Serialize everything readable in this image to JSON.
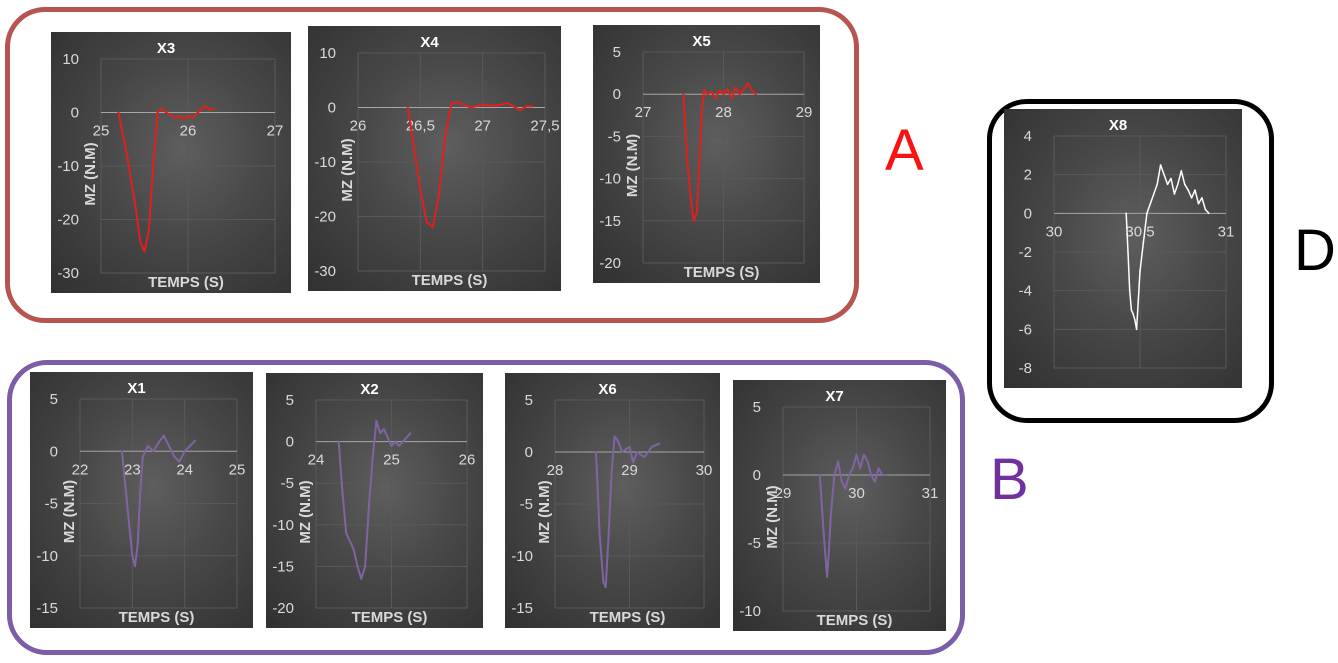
{
  "groups": [
    {
      "id": "A",
      "label": "A",
      "color": "#b85450",
      "charts": [
        "X3",
        "X4",
        "X5"
      ]
    },
    {
      "id": "B",
      "label": "B",
      "color": "#7b5ea7",
      "charts": [
        "X1",
        "X2",
        "X6",
        "X7"
      ]
    },
    {
      "id": "D",
      "label": "D",
      "color": "#000000",
      "charts": [
        "X8"
      ]
    }
  ],
  "chart_data": [
    {
      "id": "X3",
      "type": "line",
      "title": "X3",
      "xlabel": "TEMPS (S)",
      "ylabel": "MZ (N.M)",
      "color": "#e0201b",
      "xlim": [
        25,
        27
      ],
      "ylim": [
        -30,
        10
      ],
      "xticks": [
        "25",
        "26",
        "27"
      ],
      "yticks": [
        "10",
        "0",
        "-10",
        "-20",
        "-30"
      ],
      "grid": true,
      "x": [
        25.2,
        25.3,
        25.4,
        25.45,
        25.5,
        25.55,
        25.6,
        25.65,
        25.7,
        25.75,
        25.8,
        25.85,
        25.9,
        25.95,
        26.0,
        26.05,
        26.1,
        26.15,
        26.2,
        26.25,
        26.3
      ],
      "y": [
        0,
        -8,
        -18,
        -24,
        -26,
        -22,
        -10,
        0,
        0.8,
        0,
        -0.5,
        -1,
        -0.8,
        -1.2,
        -0.6,
        -1,
        -0.2,
        0.6,
        1.2,
        0.5,
        0.8
      ]
    },
    {
      "id": "X4",
      "type": "line",
      "title": "X4",
      "xlabel": "TEMPS (S)",
      "ylabel": "MZ (N.M)",
      "color": "#e0201b",
      "xlim": [
        26,
        27.5
      ],
      "ylim": [
        -30,
        10
      ],
      "xticks": [
        "26",
        "26,5",
        "27",
        "27,5"
      ],
      "yticks": [
        "10",
        "0",
        "-10",
        "-20",
        "-30"
      ],
      "grid": true,
      "x": [
        26.4,
        26.5,
        26.55,
        26.6,
        26.65,
        26.7,
        26.75,
        26.8,
        26.9,
        27.0,
        27.1,
        27.2,
        27.3,
        27.35,
        27.4
      ],
      "y": [
        0,
        -15,
        -21,
        -22,
        -16,
        -5,
        0.8,
        1,
        0,
        0.5,
        0.3,
        0.8,
        -0.5,
        0.2,
        0.2
      ]
    },
    {
      "id": "X5",
      "type": "line",
      "title": "X5",
      "xlabel": "TEMPS (S)",
      "ylabel": "MZ (N.M)",
      "color": "#e0201b",
      "xlim": [
        27,
        29
      ],
      "ylim": [
        -20,
        5
      ],
      "xticks": [
        "27",
        "28",
        "29"
      ],
      "yticks": [
        "5",
        "0",
        "-5",
        "-10",
        "-15",
        "-20"
      ],
      "grid": true,
      "x": [
        27.5,
        27.55,
        27.6,
        27.63,
        27.67,
        27.7,
        27.73,
        27.76,
        27.8,
        27.85,
        27.9,
        27.95,
        28.0,
        28.05,
        28.1,
        28.15,
        28.2,
        28.25,
        28.3,
        28.35,
        28.4
      ],
      "y": [
        0,
        -8,
        -13,
        -15,
        -14,
        -8,
        -2,
        0.5,
        0,
        0.3,
        -0.5,
        0.5,
        0,
        0.6,
        -0.5,
        0.8,
        0,
        0.5,
        1.3,
        0.5,
        0
      ]
    },
    {
      "id": "X1",
      "type": "line",
      "title": "X1",
      "xlabel": "TEMPS (S)",
      "ylabel": "MZ (N.M)",
      "color": "#8064a2",
      "xlim": [
        22,
        25
      ],
      "ylim": [
        -15,
        5
      ],
      "xticks": [
        "22",
        "23",
        "24",
        "25"
      ],
      "yticks": [
        "5",
        "0",
        "-5",
        "-10",
        "-15"
      ],
      "grid": true,
      "x": [
        22.8,
        22.9,
        23.0,
        23.05,
        23.1,
        23.15,
        23.2,
        23.3,
        23.4,
        23.5,
        23.6,
        23.7,
        23.8,
        23.9,
        24.0,
        24.1,
        24.2
      ],
      "y": [
        0,
        -5,
        -10,
        -11,
        -9,
        -4,
        -0.5,
        0.5,
        0,
        0.8,
        1.5,
        0.5,
        -0.5,
        -1,
        0,
        0.5,
        1
      ]
    },
    {
      "id": "X2",
      "type": "line",
      "title": "X2",
      "xlabel": "TEMPS (S)",
      "ylabel": "MZ (N.M)",
      "color": "#8064a2",
      "xlim": [
        24,
        26
      ],
      "ylim": [
        -20,
        5
      ],
      "xticks": [
        "24",
        "25",
        "26"
      ],
      "yticks": [
        "5",
        "0",
        "-5",
        "-10",
        "-15",
        "-20"
      ],
      "grid": true,
      "x": [
        24.3,
        24.35,
        24.4,
        24.5,
        24.55,
        24.6,
        24.65,
        24.7,
        24.75,
        24.8,
        24.85,
        24.9,
        24.95,
        25.0,
        25.05,
        25.1,
        25.15,
        25.2,
        25.25
      ],
      "y": [
        0,
        -6,
        -11,
        -13,
        -15,
        -16.5,
        -15,
        -8,
        -2,
        2.5,
        1,
        1.5,
        0.5,
        -0.5,
        0,
        -0.5,
        0,
        0.5,
        1
      ]
    },
    {
      "id": "X6",
      "type": "line",
      "title": "X6",
      "xlabel": "TEMPS (S)",
      "ylabel": "MZ (N.M)",
      "color": "#8064a2",
      "xlim": [
        28,
        30
      ],
      "ylim": [
        -15,
        5
      ],
      "xticks": [
        "28",
        "29",
        "30"
      ],
      "yticks": [
        "5",
        "0",
        "-5",
        "-10",
        "-15"
      ],
      "grid": true,
      "x": [
        28.55,
        28.6,
        28.65,
        28.68,
        28.72,
        28.76,
        28.8,
        28.85,
        28.9,
        29.0,
        29.05,
        29.1,
        29.2,
        29.3,
        29.4
      ],
      "y": [
        0,
        -8,
        -12.5,
        -13,
        -8,
        -2,
        1.5,
        1,
        0,
        0.5,
        -1,
        0,
        -0.5,
        0.5,
        0.8
      ]
    },
    {
      "id": "X7",
      "type": "line",
      "title": "X7",
      "xlabel": "TEMPS (S)",
      "ylabel": "MZ (N.M)",
      "color": "#8064a2",
      "xlim": [
        29,
        31
      ],
      "ylim": [
        -10,
        5
      ],
      "xticks": [
        "29",
        "30",
        "31"
      ],
      "yticks": [
        "5",
        "0",
        "-5",
        "-10"
      ],
      "grid": true,
      "x": [
        29.5,
        29.55,
        29.6,
        29.62,
        29.65,
        29.7,
        29.75,
        29.8,
        29.85,
        29.9,
        29.95,
        30.0,
        30.05,
        30.1,
        30.15,
        30.2,
        30.25,
        30.3,
        30.35,
        30.4
      ],
      "y": [
        0,
        -4,
        -7.5,
        -6,
        -3,
        0,
        1,
        -0.5,
        -1,
        0,
        0.5,
        1.5,
        0.5,
        1.5,
        1,
        0,
        -0.5,
        0.5,
        0,
        0
      ]
    },
    {
      "id": "X8",
      "type": "line",
      "title": "X8",
      "xlabel": "",
      "ylabel": "",
      "color": "#ffffff",
      "xlim": [
        30,
        31
      ],
      "ylim": [
        -8,
        4
      ],
      "xticks": [
        "30",
        "30,5",
        "31"
      ],
      "yticks": [
        "4",
        "2",
        "0",
        "-2",
        "-4",
        "-6",
        "-8"
      ],
      "grid": true,
      "x": [
        30.42,
        30.43,
        30.44,
        30.45,
        30.46,
        30.47,
        30.48,
        30.49,
        30.5,
        30.52,
        30.54,
        30.56,
        30.58,
        30.6,
        30.62,
        30.64,
        30.66,
        30.68,
        30.7,
        30.72,
        30.74,
        30.76,
        30.78,
        30.8,
        30.82,
        30.84,
        30.86,
        30.88,
        30.9
      ],
      "y": [
        0,
        -2,
        -4,
        -5,
        -5.2,
        -5.5,
        -6,
        -4.5,
        -3,
        -1.5,
        0,
        0.5,
        1,
        1.5,
        2.5,
        2,
        1.5,
        1.8,
        1,
        1.5,
        2.2,
        1.5,
        1.2,
        0.8,
        1.2,
        0.5,
        0.8,
        0.2,
        0
      ]
    }
  ]
}
